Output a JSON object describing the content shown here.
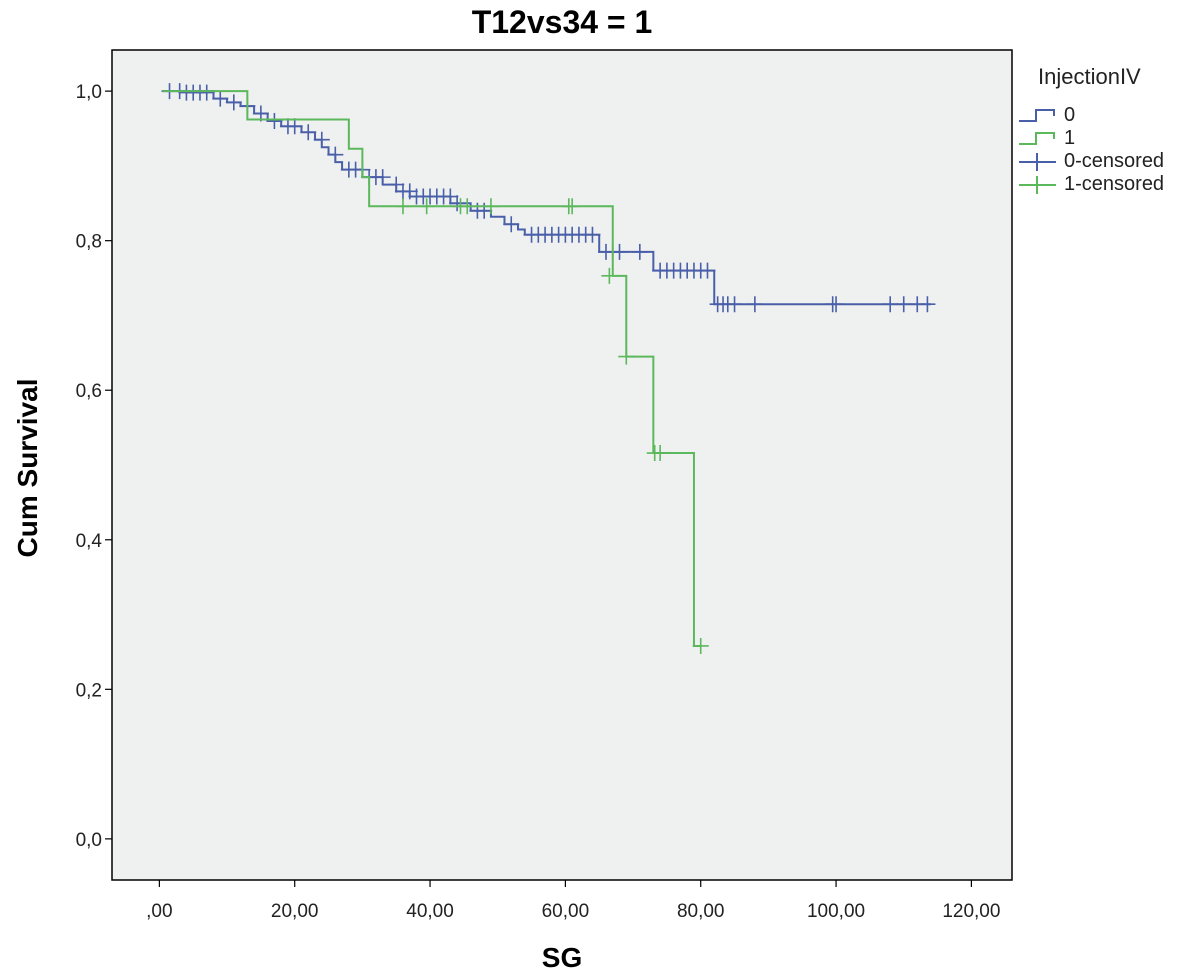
{
  "chart_data": {
    "type": "line",
    "subtype": "kaplan-meier step",
    "title": "T12vs34 = 1",
    "xlabel": "SG",
    "ylabel": "Cum Survival",
    "xlim": [
      -7,
      126
    ],
    "ylim": [
      -0.055,
      1.055
    ],
    "x_ticks": [
      0,
      20,
      40,
      60,
      80,
      100,
      120
    ],
    "x_tick_labels": [
      ",00",
      "20,00",
      "40,00",
      "60,00",
      "80,00",
      "100,00",
      "120,00"
    ],
    "y_ticks": [
      0,
      0.2,
      0.4,
      0.6,
      0.8,
      1.0
    ],
    "y_tick_labels": [
      "0,0",
      "0,2",
      "0,4",
      "0,6",
      "0,8",
      "1,0"
    ],
    "grid": false,
    "legend_placement": "right",
    "legend_title": "InjectionIV",
    "background_color": "#eff1f0",
    "series": [
      {
        "name": "0",
        "color": "#4a5fa9",
        "steps": [
          [
            0.5,
            1.0
          ],
          [
            8,
            0.99
          ],
          [
            10,
            0.985
          ],
          [
            12,
            0.98
          ],
          [
            14,
            0.97
          ],
          [
            16,
            0.96
          ],
          [
            18,
            0.953
          ],
          [
            21,
            0.945
          ],
          [
            23,
            0.935
          ],
          [
            24,
            0.925
          ],
          [
            25,
            0.915
          ],
          [
            26,
            0.905
          ],
          [
            27,
            0.895
          ],
          [
            30,
            0.885
          ],
          [
            33,
            0.875
          ],
          [
            35,
            0.866
          ],
          [
            37,
            0.859
          ],
          [
            43,
            0.85
          ],
          [
            46,
            0.84
          ],
          [
            49,
            0.832
          ],
          [
            51,
            0.822
          ],
          [
            53,
            0.815
          ],
          [
            54,
            0.808
          ],
          [
            65,
            0.785
          ],
          [
            73,
            0.76
          ],
          [
            82,
            0.715
          ],
          [
            114,
            0.715
          ]
        ],
        "censored": [
          [
            1.5,
            1.0
          ],
          [
            3,
            1.0
          ],
          [
            4,
            0.998
          ],
          [
            5,
            0.998
          ],
          [
            6,
            0.998
          ],
          [
            7,
            0.998
          ],
          [
            9,
            0.99
          ],
          [
            11,
            0.985
          ],
          [
            13,
            0.98
          ],
          [
            15,
            0.97
          ],
          [
            17,
            0.96
          ],
          [
            19,
            0.953
          ],
          [
            20,
            0.953
          ],
          [
            22,
            0.945
          ],
          [
            24,
            0.935
          ],
          [
            26,
            0.915
          ],
          [
            28,
            0.895
          ],
          [
            29,
            0.895
          ],
          [
            30,
            0.895
          ],
          [
            31,
            0.885
          ],
          [
            32,
            0.885
          ],
          [
            33,
            0.885
          ],
          [
            35,
            0.875
          ],
          [
            36,
            0.866
          ],
          [
            37,
            0.866
          ],
          [
            38,
            0.859
          ],
          [
            39,
            0.859
          ],
          [
            40,
            0.859
          ],
          [
            41,
            0.859
          ],
          [
            42,
            0.859
          ],
          [
            43,
            0.859
          ],
          [
            44,
            0.85
          ],
          [
            47,
            0.84
          ],
          [
            48,
            0.84
          ],
          [
            52,
            0.822
          ],
          [
            55,
            0.808
          ],
          [
            56,
            0.808
          ],
          [
            57,
            0.808
          ],
          [
            58,
            0.808
          ],
          [
            59,
            0.808
          ],
          [
            60,
            0.808
          ],
          [
            61,
            0.808
          ],
          [
            62,
            0.808
          ],
          [
            63,
            0.808
          ],
          [
            64,
            0.808
          ],
          [
            66,
            0.785
          ],
          [
            67,
            0.785
          ],
          [
            68,
            0.785
          ],
          [
            71,
            0.785
          ],
          [
            74,
            0.76
          ],
          [
            75,
            0.76
          ],
          [
            76,
            0.76
          ],
          [
            77,
            0.76
          ],
          [
            78,
            0.76
          ],
          [
            79,
            0.76
          ],
          [
            80,
            0.76
          ],
          [
            81,
            0.76
          ],
          [
            82.5,
            0.715
          ],
          [
            83.3,
            0.715
          ],
          [
            84,
            0.715
          ],
          [
            85,
            0.715
          ],
          [
            88,
            0.715
          ],
          [
            99.5,
            0.715
          ],
          [
            100,
            0.715
          ],
          [
            108,
            0.715
          ],
          [
            110,
            0.715
          ],
          [
            112,
            0.715
          ],
          [
            113.5,
            0.715
          ]
        ]
      },
      {
        "name": "1",
        "color": "#5bb85b",
        "steps": [
          [
            0.5,
            1.0
          ],
          [
            13,
            0.962
          ],
          [
            28,
            0.923
          ],
          [
            30,
            0.885
          ],
          [
            31,
            0.846
          ],
          [
            67,
            0.753
          ],
          [
            69,
            0.645
          ],
          [
            73,
            0.516
          ],
          [
            79,
            0.258
          ],
          [
            80,
            0.258
          ]
        ],
        "censored": [
          [
            36,
            0.846
          ],
          [
            39.5,
            0.846
          ],
          [
            44.5,
            0.846
          ],
          [
            45.5,
            0.846
          ],
          [
            49,
            0.846
          ],
          [
            60.5,
            0.846
          ],
          [
            61,
            0.846
          ],
          [
            66.5,
            0.753
          ],
          [
            69,
            0.645
          ],
          [
            73.2,
            0.516
          ],
          [
            74,
            0.516
          ],
          [
            80,
            0.258
          ]
        ]
      }
    ]
  },
  "legend": {
    "title": "InjectionIV",
    "items": [
      {
        "label": "0",
        "kind": "step",
        "color": "#4a5fa9"
      },
      {
        "label": "1",
        "kind": "step",
        "color": "#5bb85b"
      },
      {
        "label": "0-censored",
        "kind": "cross",
        "color": "#4a5fa9"
      },
      {
        "label": "1-censored",
        "kind": "cross",
        "color": "#5bb85b"
      }
    ]
  }
}
